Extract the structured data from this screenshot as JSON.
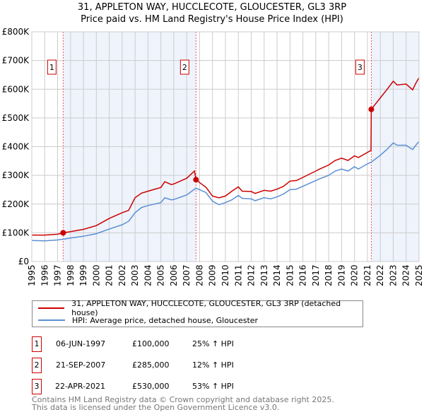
{
  "chart_data": {
    "type": "line",
    "title": "31, APPLETON WAY, HUCCLECOTE, GLOUCESTER, GL3 3RP",
    "subtitle": "Price paid vs. HM Land Registry's House Price Index (HPI)",
    "xlim": [
      1995,
      2025
    ],
    "ylim": [
      0,
      800000
    ],
    "x_ticks": [
      "1995",
      "1996",
      "1997",
      "1998",
      "1999",
      "2000",
      "2001",
      "2002",
      "2003",
      "2004",
      "2005",
      "2006",
      "2007",
      "2008",
      "2009",
      "2010",
      "2011",
      "2012",
      "2013",
      "2014",
      "2015",
      "2016",
      "2017",
      "2018",
      "2019",
      "2020",
      "2021",
      "2022",
      "2023",
      "2024",
      "2025"
    ],
    "y_ticks": [
      {
        "v": 0,
        "l": "£0"
      },
      {
        "v": 100000,
        "l": "£100K"
      },
      {
        "v": 200000,
        "l": "£200K"
      },
      {
        "v": 300000,
        "l": "£300K"
      },
      {
        "v": 400000,
        "l": "£400K"
      },
      {
        "v": 500000,
        "l": "£500K"
      },
      {
        "v": 600000,
        "l": "£600K"
      },
      {
        "v": 700000,
        "l": "£700K"
      },
      {
        "v": 800000,
        "l": "£800K"
      }
    ],
    "grid": true,
    "series": [
      {
        "name": "31, APPLETON WAY, HUCCLECOTE, GLOUCESTER, GL3 3RP (detached house)",
        "color": "#cc0000",
        "x": [
          1995,
          1996,
          1997,
          1997.43,
          1998,
          1999,
          2000,
          2001,
          2002,
          2002.5,
          2003,
          2003.5,
          2004,
          2005,
          2005.3,
          2005.8,
          2006,
          2007,
          2007.6,
          2007.72,
          2008,
          2008.5,
          2009,
          2009.5,
          2010,
          2010.5,
          2011,
          2011.3,
          2012,
          2012.3,
          2013,
          2013.5,
          2014,
          2014.5,
          2015,
          2015.5,
          2016,
          2017,
          2017.3,
          2018,
          2018.5,
          2019,
          2019.5,
          2020,
          2020.3,
          2021,
          2021.28,
          2021.3,
          2022,
          2022.5,
          2023,
          2023.3,
          2024,
          2024.5,
          2024.8,
          2025
        ],
        "y": [
          92000,
          92000,
          95000,
          100000,
          104000,
          112000,
          125000,
          150000,
          170000,
          178000,
          222000,
          238000,
          245000,
          258000,
          278000,
          268000,
          270000,
          290000,
          315000,
          285000,
          275000,
          258000,
          228000,
          222000,
          228000,
          245000,
          260000,
          245000,
          244000,
          237000,
          248000,
          245000,
          252000,
          262000,
          280000,
          282000,
          293000,
          315000,
          322000,
          336000,
          352000,
          360000,
          352000,
          368000,
          362000,
          380000,
          387000,
          530000,
          570000,
          598000,
          628000,
          615000,
          618000,
          598000,
          625000,
          640000
        ]
      },
      {
        "name": "HPI: Average price, detached house, Gloucester",
        "color": "#5b8fd4",
        "x": [
          1995,
          1996,
          1997,
          1997.5,
          1998,
          1999,
          2000,
          2001,
          2002,
          2002.5,
          2003,
          2003.5,
          2004,
          2005,
          2005.3,
          2005.8,
          2006,
          2007,
          2007.7,
          2008,
          2008.5,
          2009,
          2009.5,
          2010,
          2010.5,
          2011,
          2011.3,
          2012,
          2012.3,
          2013,
          2013.5,
          2014,
          2014.5,
          2015,
          2015.5,
          2016,
          2017,
          2017.3,
          2018,
          2018.5,
          2019,
          2019.5,
          2020,
          2020.3,
          2021,
          2021.3,
          2022,
          2022.5,
          2023,
          2023.3,
          2024,
          2024.5,
          2024.8,
          2025
        ],
        "y": [
          73000,
          72000,
          75000,
          78000,
          82000,
          88000,
          97000,
          113000,
          128000,
          140000,
          170000,
          188000,
          195000,
          205000,
          222000,
          215000,
          216000,
          232000,
          255000,
          250000,
          240000,
          210000,
          198000,
          205000,
          215000,
          230000,
          220000,
          218000,
          212000,
          222000,
          218000,
          225000,
          235000,
          250000,
          252000,
          262000,
          282000,
          288000,
          300000,
          315000,
          322000,
          315000,
          330000,
          322000,
          340000,
          346000,
          370000,
          390000,
          413000,
          405000,
          405000,
          390000,
          408000,
          418000
        ]
      }
    ],
    "annotations": [
      {
        "label": "1",
        "x": 1997.43,
        "y": 100000
      },
      {
        "label": "2",
        "x": 2007.72,
        "y": 285000
      },
      {
        "label": "3",
        "x": 2021.3,
        "y": 530000
      }
    ],
    "shaded": [
      [
        1997.43,
        2007.72
      ],
      [
        2021.3,
        2025
      ]
    ]
  },
  "legend": {
    "items": [
      "31, APPLETON WAY, HUCCLECOTE, GLOUCESTER, GL3 3RP (detached house)",
      "HPI: Average price, detached house, Gloucester"
    ],
    "colors": [
      "#cc0000",
      "#5b8fd4"
    ]
  },
  "sales": [
    {
      "num": "1",
      "date": "06-JUN-1997",
      "price": "£100,000",
      "hpi": "25% ↑ HPI"
    },
    {
      "num": "2",
      "date": "21-SEP-2007",
      "price": "£285,000",
      "hpi": "12% ↑ HPI"
    },
    {
      "num": "3",
      "date": "22-APR-2021",
      "price": "£530,000",
      "hpi": "53% ↑ HPI"
    }
  ],
  "footer": {
    "line1": "Contains HM Land Registry data © Crown copyright and database right 2025.",
    "line2": "This data is licensed under the Open Government Licence v3.0."
  }
}
